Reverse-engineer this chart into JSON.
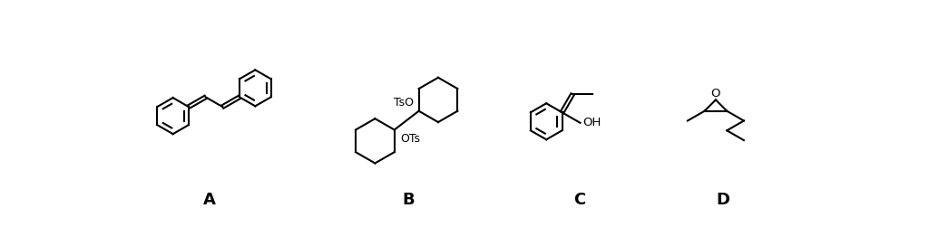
{
  "background_color": "#ffffff",
  "label_A": "A",
  "label_B": "B",
  "label_C": "C",
  "label_D": "D",
  "label_fontsize": 13,
  "label_fontweight": "bold",
  "line_color": "#000000",
  "line_width": 1.5
}
